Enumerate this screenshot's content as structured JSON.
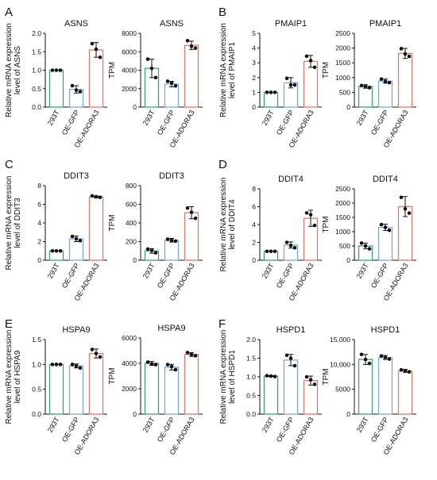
{
  "figure": {
    "panels": [
      {
        "letter": "A",
        "charts": [
          0,
          1
        ]
      },
      {
        "letter": "B",
        "charts": [
          2,
          3
        ]
      },
      {
        "letter": "C",
        "charts": [
          4,
          5
        ]
      },
      {
        "letter": "D",
        "charts": [
          6,
          7
        ]
      },
      {
        "letter": "E",
        "charts": [
          8,
          9
        ]
      },
      {
        "letter": "F",
        "charts": [
          10,
          11
        ]
      }
    ]
  },
  "colors": {
    "293T": "#3aa56a",
    "OE-GFP": "#7da8df",
    "OE-ADORA3": "#e07a68",
    "points": "#111111",
    "axis": "#111111"
  },
  "chart_data": [
    {
      "type": "bar",
      "panel": "A",
      "title": "ASNS",
      "ylabel": [
        "Relative mRNA expression",
        "level of ASNS"
      ],
      "categories": [
        "293T",
        "OE-GFP",
        "OE-ADORA3"
      ],
      "values": [
        1.0,
        0.48,
        1.55
      ],
      "errors": [
        0.0,
        0.1,
        0.2
      ],
      "points": [
        [
          1.0,
          1.0,
          1.0
        ],
        [
          0.58,
          0.46,
          0.42
        ],
        [
          1.72,
          1.57,
          1.35
        ]
      ],
      "ylim": [
        0,
        2.0
      ],
      "yticks": [
        0,
        0.5,
        1.0,
        1.5,
        2.0
      ],
      "ytick_labels": [
        "0.0",
        "0.5",
        "1.0",
        "1.5",
        "2.0"
      ]
    },
    {
      "type": "bar",
      "panel": "A",
      "title": "ASNS",
      "ylabel": [
        "TPM"
      ],
      "categories": [
        "293T",
        "OE-GFP",
        "OE-ADORA3"
      ],
      "values": [
        4200,
        2500,
        6700
      ],
      "errors": [
        1000,
        300,
        450
      ],
      "points": [
        [
          5200,
          4200,
          3200
        ],
        [
          2800,
          2600,
          2300
        ],
        [
          7200,
          6600,
          6400
        ]
      ],
      "ylim": [
        0,
        8000
      ],
      "yticks": [
        0,
        2000,
        4000,
        6000,
        8000
      ],
      "ytick_labels": [
        "0",
        "2000",
        "4000",
        "6000",
        "8000"
      ]
    },
    {
      "type": "bar",
      "panel": "B",
      "title": "PMAIP1",
      "ylabel": [
        "Relative mRNA expression",
        "level of PMAIP1"
      ],
      "categories": [
        "293T",
        "OE-GFP",
        "OE-ADORA3"
      ],
      "values": [
        1.0,
        1.65,
        3.1
      ],
      "errors": [
        0.0,
        0.35,
        0.4
      ],
      "points": [
        [
          1.0,
          1.0,
          1.0
        ],
        [
          1.95,
          1.5,
          1.5
        ],
        [
          3.45,
          3.15,
          2.7
        ]
      ],
      "ylim": [
        0,
        5
      ],
      "yticks": [
        0,
        1,
        2,
        3,
        4,
        5
      ],
      "ytick_labels": [
        "0",
        "1",
        "2",
        "3",
        "4",
        "5"
      ]
    },
    {
      "type": "bar",
      "panel": "B",
      "title": "PMAIP1",
      "ylabel": [
        "TPM"
      ],
      "categories": [
        "293T",
        "OE-GFP",
        "OE-ADORA3"
      ],
      "values": [
        700,
        880,
        1820
      ],
      "errors": [
        60,
        70,
        170
      ],
      "points": [
        [
          730,
          700,
          660
        ],
        [
          950,
          870,
          830
        ],
        [
          1980,
          1800,
          1720
        ]
      ],
      "ylim": [
        0,
        2500
      ],
      "yticks": [
        0,
        500,
        1000,
        1500,
        2000,
        2500
      ],
      "ytick_labels": [
        "0",
        "500",
        "1000",
        "1500",
        "2000",
        "2500"
      ]
    },
    {
      "type": "bar",
      "panel": "C",
      "title": "DDIT3",
      "ylabel": [
        "Relative mRNA expression",
        "level of DDIT3"
      ],
      "categories": [
        "293T",
        "OE-GFP",
        "OE-ADORA3"
      ],
      "values": [
        1.0,
        2.3,
        6.8
      ],
      "errors": [
        0.0,
        0.3,
        0.1
      ],
      "points": [
        [
          1.0,
          1.0,
          1.0
        ],
        [
          2.55,
          2.3,
          2.1
        ],
        [
          6.9,
          6.8,
          6.75
        ]
      ],
      "ylim": [
        0,
        8
      ],
      "yticks": [
        0,
        2,
        4,
        6,
        8
      ],
      "ytick_labels": [
        "0",
        "2",
        "4",
        "6",
        "8"
      ]
    },
    {
      "type": "bar",
      "panel": "C",
      "title": "DDIT3",
      "ylabel": [
        "TPM"
      ],
      "categories": [
        "293T",
        "OE-GFP",
        "OE-ADORA3"
      ],
      "values": [
        100,
        215,
        510
      ],
      "errors": [
        25,
        20,
        65
      ],
      "points": [
        [
          120,
          105,
          80
        ],
        [
          225,
          215,
          205
        ],
        [
          560,
          515,
          450
        ]
      ],
      "ylim": [
        0,
        800
      ],
      "yticks": [
        0,
        200,
        400,
        600,
        800
      ],
      "ytick_labels": [
        "0",
        "200",
        "400",
        "600",
        "800"
      ]
    },
    {
      "type": "bar",
      "panel": "D",
      "title": "DDIT4",
      "ylabel": [
        "Relative mRNA expression",
        "level of DDIT4"
      ],
      "categories": [
        "293T",
        "OE-GFP",
        "OE-ADORA3"
      ],
      "values": [
        1.0,
        1.7,
        4.7
      ],
      "errors": [
        0.0,
        0.35,
        0.9
      ],
      "points": [
        [
          1.0,
          1.0,
          1.0
        ],
        [
          2.0,
          1.65,
          1.4
        ],
        [
          5.3,
          5.1,
          3.9
        ]
      ],
      "ylim": [
        0,
        8
      ],
      "yticks": [
        0,
        2,
        4,
        6,
        8
      ],
      "ytick_labels": [
        "0",
        "2",
        "4",
        "6",
        "8"
      ]
    },
    {
      "type": "bar",
      "panel": "D",
      "title": "DDIT4",
      "ylabel": [
        "TPM"
      ],
      "categories": [
        "293T",
        "OE-GFP",
        "OE-ADORA3"
      ],
      "values": [
        500,
        1150,
        1880
      ],
      "errors": [
        100,
        110,
        350
      ],
      "points": [
        [
          600,
          500,
          400
        ],
        [
          1250,
          1150,
          1050
        ],
        [
          2200,
          1800,
          1650
        ]
      ],
      "ylim": [
        0,
        2500
      ],
      "yticks": [
        0,
        500,
        1000,
        1500,
        2000,
        2500
      ],
      "ytick_labels": [
        "0",
        "500",
        "1000",
        "1500",
        "2000",
        "2500"
      ]
    },
    {
      "type": "bar",
      "panel": "E",
      "title": "HSPA9",
      "ylabel": [
        "Relative mRNA expression",
        "level of HSPA9"
      ],
      "categories": [
        "293T",
        "OE-GFP",
        "OE-ADORA3"
      ],
      "values": [
        1.0,
        0.97,
        1.22
      ],
      "errors": [
        0.0,
        0.04,
        0.09
      ],
      "points": [
        [
          1.0,
          1.0,
          1.0
        ],
        [
          1.0,
          0.97,
          0.93
        ],
        [
          1.3,
          1.22,
          1.15
        ]
      ],
      "ylim": [
        0,
        1.5
      ],
      "yticks": [
        0,
        0.5,
        1.0,
        1.5
      ],
      "ytick_labels": [
        "0.0",
        "0.5",
        "1.0",
        "1.5"
      ]
    },
    {
      "type": "bar",
      "panel": "E",
      "title": "HSPA9",
      "ylabel": [
        "TPM"
      ],
      "categories": [
        "293T",
        "OE-GFP",
        "OE-ADORA3"
      ],
      "values": [
        4000,
        3700,
        4700
      ],
      "errors": [
        150,
        220,
        150
      ],
      "points": [
        [
          4100,
          3950,
          3900
        ],
        [
          3900,
          3750,
          3500
        ],
        [
          4850,
          4700,
          4600
        ]
      ],
      "ylim": [
        0,
        6000
      ],
      "yticks": [
        0,
        2000,
        4000,
        6000
      ],
      "ytick_labels": [
        "0",
        "2000",
        "4000",
        "6000"
      ]
    },
    {
      "type": "bar",
      "panel": "F",
      "title": "HSPD1",
      "ylabel": [
        "Relative mRNA expression",
        "level of HSPD1"
      ],
      "categories": [
        "293T",
        "OE-GFP",
        "OE-ADORA3"
      ],
      "values": [
        1.02,
        1.45,
        0.9
      ],
      "errors": [
        0.01,
        0.15,
        0.12
      ],
      "points": [
        [
          1.03,
          1.02,
          1.01
        ],
        [
          1.58,
          1.5,
          1.3
        ],
        [
          1.0,
          0.92,
          0.8
        ]
      ],
      "ylim": [
        0,
        2.0
      ],
      "yticks": [
        0,
        0.5,
        1.0,
        1.5,
        2.0
      ],
      "ytick_labels": [
        "0.0",
        "0.5",
        "1.0",
        "1.5",
        "2.0"
      ]
    },
    {
      "type": "bar",
      "panel": "F",
      "title": "HSPD1",
      "ylabel": [
        "TPM"
      ],
      "categories": [
        "293T",
        "OE-GFP",
        "OE-ADORA3"
      ],
      "values": [
        11000,
        11400,
        8700
      ],
      "errors": [
        1000,
        400,
        300
      ],
      "points": [
        [
          12000,
          11000,
          10200
        ],
        [
          11700,
          11400,
          11100
        ],
        [
          8900,
          8700,
          8500
        ]
      ],
      "ylim": [
        0,
        15000
      ],
      "yticks": [
        0,
        5000,
        10000,
        15000
      ],
      "ytick_labels": [
        "0",
        "5000",
        "10,000",
        "15,000"
      ]
    }
  ]
}
